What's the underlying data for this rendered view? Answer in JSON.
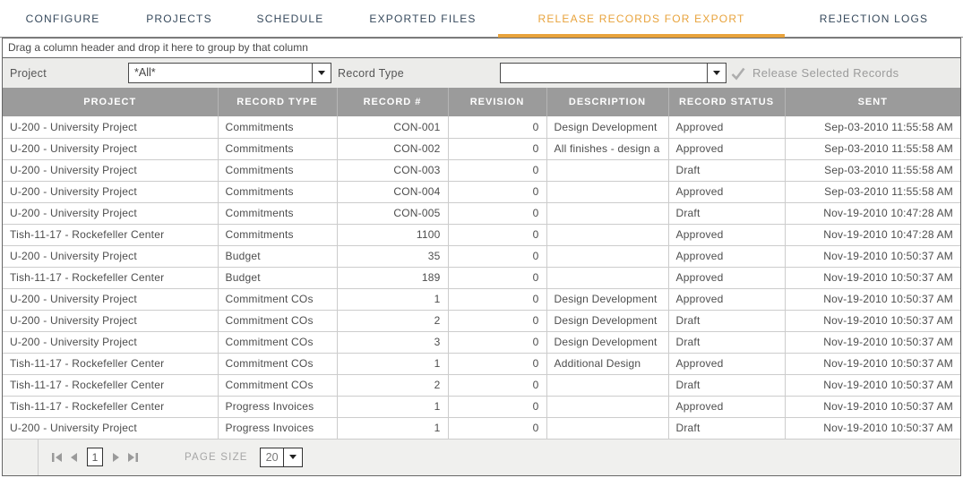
{
  "tabs": [
    {
      "label": "CONFIGURE",
      "active": false
    },
    {
      "label": "PROJECTS",
      "active": false
    },
    {
      "label": "SCHEDULE",
      "active": false
    },
    {
      "label": "EXPORTED FILES",
      "active": false
    },
    {
      "label": "RELEASE RECORDS FOR EXPORT",
      "active": true
    },
    {
      "label": "REJECTION LOGS",
      "active": false
    }
  ],
  "group_bar": {
    "text": "Drag a column header and drop it here to group by that column"
  },
  "filter": {
    "project_label": "Project",
    "project_value": "*All*",
    "record_type_label": "Record Type",
    "record_type_value": "",
    "release_button_label": "Release Selected Records"
  },
  "table": {
    "columns": [
      "PROJECT",
      "RECORD TYPE",
      "RECORD #",
      "REVISION",
      "DESCRIPTION",
      "RECORD STATUS",
      "SENT"
    ],
    "rows": [
      [
        "U-200 - University Project",
        "Commitments",
        "CON-001",
        "0",
        "Design Development",
        "Approved",
        "Sep-03-2010 11:55:58 AM"
      ],
      [
        "U-200 - University Project",
        "Commitments",
        "CON-002",
        "0",
        "All finishes - design a",
        "Approved",
        "Sep-03-2010 11:55:58 AM"
      ],
      [
        "U-200 - University Project",
        "Commitments",
        "CON-003",
        "0",
        "",
        "Draft",
        "Sep-03-2010 11:55:58 AM"
      ],
      [
        "U-200 - University Project",
        "Commitments",
        "CON-004",
        "0",
        "",
        "Approved",
        "Sep-03-2010 11:55:58 AM"
      ],
      [
        "U-200 - University Project",
        "Commitments",
        "CON-005",
        "0",
        "",
        "Draft",
        "Nov-19-2010 10:47:28 AM"
      ],
      [
        "Tish-11-17 - Rockefeller Center",
        "Commitments",
        "1100",
        "0",
        "",
        "Approved",
        "Nov-19-2010 10:47:28 AM"
      ],
      [
        "U-200 - University Project",
        "Budget",
        "35",
        "0",
        "",
        "Approved",
        "Nov-19-2010 10:50:37 AM"
      ],
      [
        "Tish-11-17 - Rockefeller Center",
        "Budget",
        "189",
        "0",
        "",
        "Approved",
        "Nov-19-2010 10:50:37 AM"
      ],
      [
        "U-200 - University Project",
        "Commitment COs",
        "1",
        "0",
        "Design Development",
        "Approved",
        "Nov-19-2010 10:50:37 AM"
      ],
      [
        "U-200 - University Project",
        "Commitment COs",
        "2",
        "0",
        "Design Development",
        "Draft",
        "Nov-19-2010 10:50:37 AM"
      ],
      [
        "U-200 - University Project",
        "Commitment COs",
        "3",
        "0",
        "Design Development",
        "Draft",
        "Nov-19-2010 10:50:37 AM"
      ],
      [
        "Tish-11-17 - Rockefeller Center",
        "Commitment COs",
        "1",
        "0",
        "Additional Design",
        "Approved",
        "Nov-19-2010 10:50:37 AM"
      ],
      [
        "Tish-11-17 - Rockefeller Center",
        "Commitment COs",
        "2",
        "0",
        "",
        "Draft",
        "Nov-19-2010 10:50:37 AM"
      ],
      [
        "Tish-11-17 - Rockefeller Center",
        "Progress Invoices",
        "1",
        "0",
        "",
        "Approved",
        "Nov-19-2010 10:50:37 AM"
      ],
      [
        "U-200 - University Project",
        "Progress Invoices",
        "1",
        "0",
        "",
        "Draft",
        "Nov-19-2010 10:50:37 AM"
      ]
    ]
  },
  "pager": {
    "current_page": "1",
    "page_size_label": "PAGE SIZE",
    "page_size_value": "20"
  },
  "colors": {
    "accent_orange": "#E8A33C",
    "tab_text": "#36495C",
    "header_bg": "#9B9B9B",
    "disabled_gray": "#9B9B9B"
  }
}
